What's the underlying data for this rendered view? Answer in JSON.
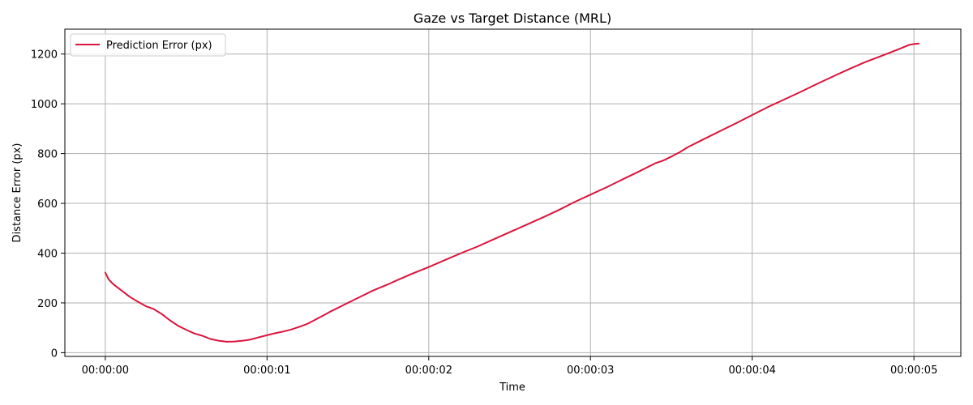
{
  "chart_data": {
    "type": "line",
    "title": "Gaze vs Target Distance (MRL)",
    "xlabel": "Time",
    "ylabel": "Distance Error (px)",
    "x_unit": "seconds",
    "xlim": [
      -0.25,
      5.29
    ],
    "ylim": [
      -15,
      1300
    ],
    "xticks": [
      0,
      1,
      2,
      3,
      4,
      5
    ],
    "xtick_labels": [
      "00:00:00",
      "00:00:01",
      "00:00:02",
      "00:00:03",
      "00:00:04",
      "00:00:05"
    ],
    "yticks": [
      0,
      200,
      400,
      600,
      800,
      1000,
      1200
    ],
    "ytick_labels": [
      "0",
      "200",
      "400",
      "600",
      "800",
      "1000",
      "1200"
    ],
    "grid": true,
    "legend_position": "top-left",
    "series": [
      {
        "name": "Prediction Error (px)",
        "color": "#dc143c",
        "x": [
          0,
          0.02,
          0.05,
          0.1,
          0.15,
          0.2,
          0.25,
          0.3,
          0.35,
          0.4,
          0.45,
          0.5,
          0.55,
          0.6,
          0.65,
          0.7,
          0.75,
          0.8,
          0.85,
          0.9,
          0.95,
          1.0,
          1.05,
          1.1,
          1.15,
          1.2,
          1.25,
          1.3,
          1.35,
          1.4,
          1.45,
          1.5,
          1.55,
          1.6,
          1.65,
          1.7,
          1.75,
          1.8,
          1.9,
          2.0,
          2.1,
          2.2,
          2.3,
          2.4,
          2.5,
          2.6,
          2.7,
          2.8,
          2.9,
          3.0,
          3.1,
          3.2,
          3.3,
          3.4,
          3.45,
          3.5,
          3.55,
          3.6,
          3.7,
          3.8,
          3.9,
          4.0,
          4.1,
          4.2,
          4.3,
          4.4,
          4.5,
          4.6,
          4.7,
          4.8,
          4.9,
          4.97,
          5.0,
          5.03
        ],
        "y": [
          322,
          295,
          275,
          250,
          225,
          205,
          187,
          175,
          155,
          130,
          108,
          92,
          77,
          68,
          55,
          48,
          44,
          45,
          48,
          53,
          62,
          70,
          78,
          85,
          93,
          104,
          116,
          133,
          150,
          168,
          184,
          200,
          216,
          232,
          248,
          262,
          275,
          290,
          318,
          344,
          372,
          400,
          426,
          455,
          484,
          513,
          542,
          572,
          605,
          635,
          665,
          697,
          728,
          761,
          772,
          788,
          805,
          825,
          858,
          890,
          922,
          955,
          988,
          1018,
          1048,
          1080,
          1110,
          1140,
          1168,
          1193,
          1218,
          1237,
          1240,
          1242
        ]
      }
    ]
  }
}
